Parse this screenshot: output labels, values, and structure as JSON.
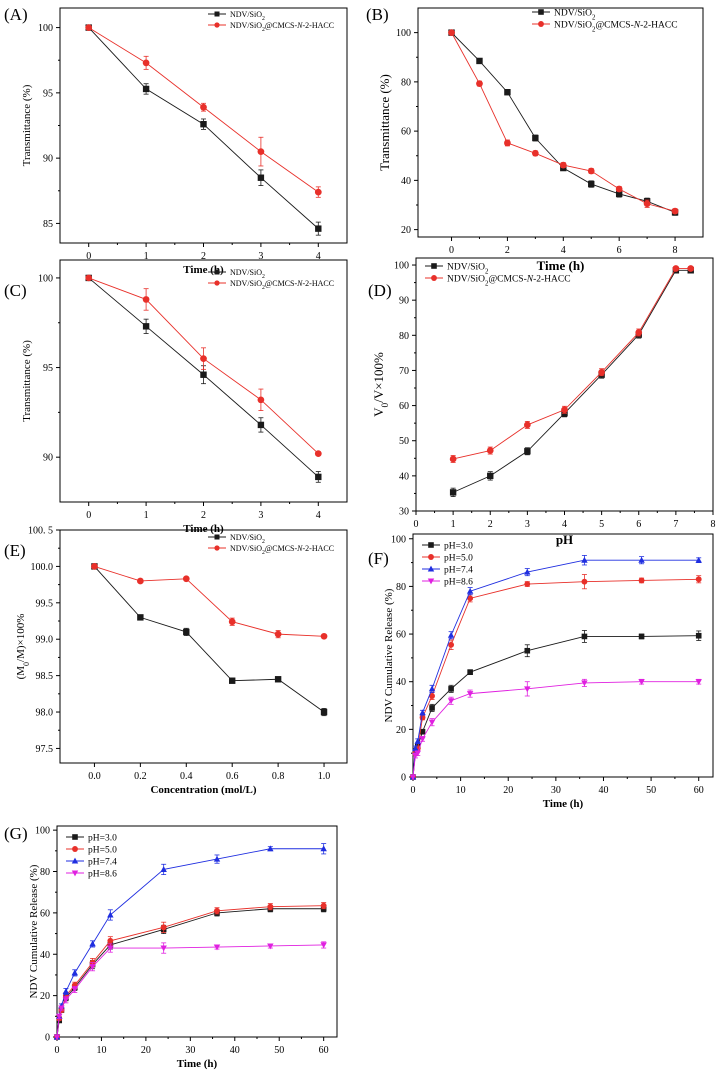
{
  "colors": {
    "black": "#1a1a1a",
    "red": "#e8302a",
    "blue": "#1f2ee0",
    "magenta": "#e020e0",
    "axis": "#000000"
  },
  "chart_data": [
    {
      "panel": "(A)",
      "type": "line",
      "xlabel": "Time (h)",
      "ylabel": "Transmittance (%)",
      "xlim": [
        -0.5,
        4.5
      ],
      "ylim": [
        83.5,
        101.5
      ],
      "xticks": [
        0,
        1,
        2,
        3,
        4
      ],
      "xtick_labels": [
        "0",
        "1",
        "2",
        "3",
        "4"
      ],
      "yticks": [
        85,
        90,
        95,
        100
      ],
      "ytick_labels": [
        "85",
        "90",
        "95",
        "100"
      ],
      "legend_position": "top-right",
      "legend_size": "small",
      "series": [
        {
          "name": "NDV/SiO₂",
          "legend_parts": [
            [
              "NDV/SiO",
              ""
            ],
            [
              "2",
              "sub"
            ]
          ],
          "color": "#1a1a1a",
          "marker": "square",
          "x": [
            0,
            1,
            2,
            3,
            4
          ],
          "y": [
            100,
            95.3,
            92.6,
            88.5,
            84.6
          ],
          "err": [
            0.1,
            0.4,
            0.4,
            0.6,
            0.5
          ]
        },
        {
          "name": "NDV/SiO₂@CMCS-N-2-HACC",
          "legend_parts": [
            [
              "NDV/SiO",
              ""
            ],
            [
              "2",
              "sub"
            ],
            [
              "@CMCS-",
              ""
            ],
            [
              "N",
              "i"
            ],
            [
              "-2-HACC",
              ""
            ]
          ],
          "color": "#e8302a",
          "marker": "circle",
          "x": [
            0,
            1,
            2,
            3,
            4
          ],
          "y": [
            100,
            97.3,
            93.9,
            90.5,
            87.4
          ],
          "err": [
            0.1,
            0.5,
            0.3,
            1.1,
            0.4
          ]
        }
      ]
    },
    {
      "panel": "(B)",
      "type": "line",
      "xlabel": "Time (h)",
      "ylabel": "Transmittance (%)",
      "xlim": [
        -1.2,
        9
      ],
      "ylim": [
        17,
        110
      ],
      "xticks": [
        0,
        2,
        4,
        6,
        8
      ],
      "xtick_labels": [
        "0",
        "2",
        "4",
        "6",
        "8"
      ],
      "yticks": [
        20,
        40,
        60,
        80,
        100
      ],
      "ytick_labels": [
        "20",
        "40",
        "60",
        "80",
        "100"
      ],
      "legend_position": "top-right",
      "legend_size": "normal",
      "series": [
        {
          "name": "NDV/SiO₂",
          "legend_parts": [
            [
              "NDV/SiO",
              ""
            ],
            [
              "2",
              "sub"
            ]
          ],
          "color": "#1a1a1a",
          "marker": "square",
          "x": [
            0,
            1,
            2,
            3,
            4,
            5,
            6,
            7,
            8
          ],
          "y": [
            100,
            88.5,
            75.8,
            57.2,
            45,
            38.5,
            34.5,
            31.5,
            27
          ],
          "err": [
            0.3,
            1,
            1,
            1.2,
            1,
            1.3,
            1.3,
            1.3,
            1.2
          ]
        },
        {
          "name": "NDV/SiO₂@CMCS-N-2-HACC",
          "legend_parts": [
            [
              "NDV/SiO",
              ""
            ],
            [
              "2",
              "sub"
            ],
            [
              "@CMCS-",
              ""
            ],
            [
              "N",
              "i"
            ],
            [
              "-2-HACC",
              ""
            ]
          ],
          "color": "#e8302a",
          "marker": "circle",
          "x": [
            0,
            1,
            2,
            3,
            4,
            5,
            6,
            7,
            8
          ],
          "y": [
            100,
            79.3,
            55.2,
            51,
            46.2,
            43.8,
            36.5,
            30.5,
            27.5
          ],
          "err": [
            0.3,
            1,
            1.2,
            1,
            1,
            1,
            1,
            1.5,
            1
          ]
        }
      ]
    },
    {
      "panel": "(C)",
      "type": "line",
      "xlabel": "Time (h)",
      "ylabel": "Transmittance (%)",
      "xlim": [
        -0.5,
        4.5
      ],
      "ylim": [
        87.5,
        101
      ],
      "xticks": [
        0,
        1,
        2,
        3,
        4
      ],
      "xtick_labels": [
        "0",
        "1",
        "2",
        "3",
        "4"
      ],
      "yticks": [
        90,
        95,
        100
      ],
      "ytick_labels": [
        "90",
        "95",
        "100"
      ],
      "legend_position": "top-right",
      "legend_size": "small",
      "series": [
        {
          "name": "NDV/SiO₂",
          "legend_parts": [
            [
              "NDV/SiO",
              ""
            ],
            [
              "2",
              "sub"
            ]
          ],
          "color": "#1a1a1a",
          "marker": "square",
          "x": [
            0,
            1,
            2,
            3,
            4
          ],
          "y": [
            100,
            97.3,
            94.6,
            91.8,
            88.9
          ],
          "err": [
            0.1,
            0.4,
            0.5,
            0.4,
            0.3
          ]
        },
        {
          "name": "NDV/SiO₂@CMCS-N-2-HACC",
          "legend_parts": [
            [
              "NDV/SiO",
              ""
            ],
            [
              "2",
              "sub"
            ],
            [
              "@CMCS-",
              ""
            ],
            [
              "N",
              "i"
            ],
            [
              "-2-HACC",
              ""
            ]
          ],
          "color": "#e8302a",
          "marker": "circle",
          "x": [
            0,
            1,
            2,
            3,
            4
          ],
          "y": [
            100,
            98.8,
            95.5,
            93.2,
            90.2
          ],
          "err": [
            0.1,
            0.6,
            0.6,
            0.6,
            0.1
          ]
        }
      ]
    },
    {
      "panel": "(D)",
      "type": "line",
      "xlabel": "pH",
      "ylabel": "V0/V×100%",
      "ylabel_parts": [
        [
          "V",
          ""
        ],
        [
          "0",
          "sub"
        ],
        [
          "/V×100%",
          ""
        ]
      ],
      "xlim": [
        0,
        8
      ],
      "ylim": [
        30,
        102
      ],
      "xticks": [
        0,
        1,
        2,
        3,
        4,
        5,
        6,
        7,
        8
      ],
      "xtick_labels": [
        "0",
        "1",
        "2",
        "3",
        "4",
        "5",
        "6",
        "7",
        "8"
      ],
      "yticks": [
        30,
        40,
        50,
        60,
        70,
        80,
        90,
        100
      ],
      "ytick_labels": [
        "30",
        "40",
        "50",
        "60",
        "70",
        "80",
        "90",
        "100"
      ],
      "legend_position": "top-left",
      "legend_size": "normal",
      "series": [
        {
          "name": "NDV/SiO₂",
          "legend_parts": [
            [
              "NDV/SiO",
              ""
            ],
            [
              "2",
              "sub"
            ]
          ],
          "color": "#1a1a1a",
          "marker": "square",
          "x": [
            1,
            2,
            3,
            4,
            5,
            6,
            7,
            7.4
          ],
          "y": [
            35.3,
            40,
            47,
            57.8,
            68.8,
            80.2,
            98.5,
            98.5
          ],
          "err": [
            1.2,
            1.2,
            1,
            1,
            1,
            1,
            0.5,
            0.5
          ]
        },
        {
          "name": "NDV/SiO₂@CMCS-N-2-HACC",
          "legend_parts": [
            [
              "NDV/SiO",
              ""
            ],
            [
              "2",
              "sub"
            ],
            [
              "@CMCS-",
              ""
            ],
            [
              "N",
              "i"
            ],
            [
              "-2-HACC",
              ""
            ]
          ],
          "color": "#e8302a",
          "marker": "circle",
          "x": [
            1,
            2,
            3,
            4,
            5,
            6,
            7,
            7.4
          ],
          "y": [
            44.8,
            47.2,
            54.5,
            58.8,
            69.5,
            80.8,
            99,
            99
          ],
          "err": [
            1,
            1,
            1,
            1,
            1,
            1,
            0.5,
            0.5
          ]
        }
      ]
    },
    {
      "panel": "(E)",
      "type": "line",
      "xlabel": "Concentration (mol/L)",
      "ylabel": "(M0/M)×100%",
      "ylabel_parts": [
        [
          "(M",
          ""
        ],
        [
          "0",
          "sub"
        ],
        [
          "/M)×100%",
          ""
        ]
      ],
      "xlim": [
        -0.15,
        1.1
      ],
      "ylim": [
        97.3,
        100.5
      ],
      "xticks": [
        0,
        0.2,
        0.4,
        0.6,
        0.8,
        1.0
      ],
      "xtick_labels": [
        "0.0",
        "0.2",
        "0.4",
        "0.6",
        "0.8",
        "1.0"
      ],
      "yticks": [
        97.5,
        98.0,
        98.5,
        99.0,
        99.5,
        100.0,
        100.5
      ],
      "ytick_labels": [
        "97.5",
        "98.0",
        "98.5",
        "99.0",
        "99.5",
        "100.0",
        "100. 5"
      ],
      "legend_position": "top-right",
      "legend_size": "small",
      "series": [
        {
          "name": "NDV/SiO₂",
          "legend_parts": [
            [
              "NDV/SiO",
              ""
            ],
            [
              "2",
              "sub"
            ]
          ],
          "color": "#1a1a1a",
          "marker": "square",
          "x": [
            0,
            0.2,
            0.4,
            0.6,
            0.8,
            1.0
          ],
          "y": [
            100,
            99.3,
            99.1,
            98.43,
            98.45,
            98
          ],
          "err": [
            0.01,
            0.02,
            0.05,
            0.02,
            0.02,
            0.05
          ]
        },
        {
          "name": "NDV/SiO₂@CMCS-N-2-HACC",
          "legend_parts": [
            [
              "NDV/SiO",
              ""
            ],
            [
              "2",
              "sub"
            ],
            [
              "@CMCS-",
              ""
            ],
            [
              "N",
              "i"
            ],
            [
              "-2-HACC",
              ""
            ]
          ],
          "color": "#e8302a",
          "marker": "circle",
          "x": [
            0,
            0.2,
            0.4,
            0.6,
            0.8,
            1.0
          ],
          "y": [
            100,
            99.8,
            99.83,
            99.24,
            99.07,
            99.04
          ],
          "err": [
            0.01,
            0.02,
            0.02,
            0.05,
            0.05,
            0.02
          ]
        }
      ]
    },
    {
      "panel": "(F)",
      "type": "line",
      "xlabel": "Time (h)",
      "ylabel": "NDV Cumulative Release (%)",
      "xlim": [
        0,
        63
      ],
      "ylim": [
        0,
        102
      ],
      "xticks": [
        0,
        10,
        20,
        30,
        40,
        50,
        60
      ],
      "xtick_labels": [
        "0",
        "10",
        "20",
        "30",
        "40",
        "50",
        "60"
      ],
      "yticks": [
        0,
        20,
        40,
        60,
        80,
        100
      ],
      "ytick_labels": [
        "0",
        "20",
        "40",
        "60",
        "80",
        "100"
      ],
      "legend_position": "top-left",
      "legend_size": "normal",
      "series": [
        {
          "name": "pH=3.0",
          "color": "#1a1a1a",
          "marker": "square",
          "x": [
            0,
            0.5,
            1,
            2,
            4,
            8,
            12,
            24,
            36,
            48,
            60
          ],
          "y": [
            0,
            10,
            13,
            19,
            29,
            37,
            44,
            53,
            59,
            59,
            59.3
          ],
          "err": [
            0,
            1,
            1,
            1,
            1.5,
            1.5,
            1,
            2.5,
            2.5,
            1,
            2
          ]
        },
        {
          "name": "pH=5.0",
          "color": "#e8302a",
          "marker": "circle",
          "x": [
            0,
            0.5,
            1,
            2,
            4,
            8,
            12,
            24,
            36,
            48,
            60
          ],
          "y": [
            0,
            10,
            12,
            25,
            34,
            55.5,
            75,
            81,
            82,
            82.5,
            83
          ],
          "err": [
            0,
            1,
            1,
            1,
            1.5,
            2,
            1.5,
            1,
            3,
            1,
            1.5
          ]
        },
        {
          "name": "pH=7.4",
          "color": "#1f2ee0",
          "marker": "triangle-up",
          "x": [
            0,
            0.5,
            1,
            2,
            4,
            8,
            12,
            24,
            36,
            48,
            60
          ],
          "y": [
            0,
            12,
            15,
            27,
            37,
            59.5,
            78,
            86,
            91,
            91,
            91
          ],
          "err": [
            0,
            1,
            1,
            1,
            1.5,
            1.5,
            1.5,
            1.5,
            2,
            1.5,
            1
          ]
        },
        {
          "name": "pH=8.6",
          "color": "#e020e0",
          "marker": "triangle-down",
          "x": [
            0,
            0.5,
            1,
            2,
            4,
            8,
            12,
            24,
            36,
            48,
            60
          ],
          "y": [
            0,
            9,
            10,
            16,
            23,
            32,
            35,
            37,
            39.5,
            40,
            40
          ],
          "err": [
            0,
            1,
            1,
            1,
            1.5,
            1.5,
            1.5,
            3,
            1.5,
            1,
            1
          ]
        }
      ]
    },
    {
      "panel": "(G)",
      "type": "line",
      "xlabel": "Time (h)",
      "ylabel": "NDV Cumulative Release (%)",
      "xlim": [
        0,
        63
      ],
      "ylim": [
        0,
        102
      ],
      "xticks": [
        0,
        10,
        20,
        30,
        40,
        50,
        60
      ],
      "xtick_labels": [
        "0",
        "10",
        "20",
        "30",
        "40",
        "50",
        "60"
      ],
      "yticks": [
        0,
        20,
        40,
        60,
        80,
        100
      ],
      "ytick_labels": [
        "0",
        "20",
        "40",
        "60",
        "80",
        "100"
      ],
      "legend_position": "top-left",
      "legend_size": "normal",
      "series": [
        {
          "name": "pH=3.0",
          "color": "#1a1a1a",
          "marker": "square",
          "x": [
            0,
            0.5,
            1,
            2,
            4,
            8,
            12,
            24,
            36,
            48,
            60
          ],
          "y": [
            0,
            8,
            13,
            19,
            24,
            35,
            44.5,
            52,
            60,
            62,
            62
          ],
          "err": [
            0,
            1,
            1,
            1.5,
            1.5,
            2,
            2,
            2,
            1.5,
            1.5,
            1.5
          ]
        },
        {
          "name": "pH=5.0",
          "color": "#e8302a",
          "marker": "circle",
          "x": [
            0,
            0.5,
            1,
            2,
            4,
            8,
            12,
            24,
            36,
            48,
            60
          ],
          "y": [
            0,
            9,
            13,
            20,
            25,
            36,
            46.5,
            53,
            61,
            63,
            63.5
          ],
          "err": [
            0,
            1,
            1,
            1.5,
            1.5,
            2,
            2,
            2.5,
            1.5,
            1.5,
            1.5
          ]
        },
        {
          "name": "pH=7.4",
          "color": "#1f2ee0",
          "marker": "triangle-up",
          "x": [
            0,
            0.5,
            1,
            2,
            4,
            8,
            12,
            24,
            36,
            48,
            60
          ],
          "y": [
            0,
            10,
            15,
            22,
            31,
            45,
            59,
            81,
            86,
            91,
            91
          ],
          "err": [
            0,
            1,
            1,
            1.5,
            1.5,
            1.5,
            2.5,
            2.5,
            2,
            1,
            2.5
          ]
        },
        {
          "name": "pH=8.6",
          "color": "#e020e0",
          "marker": "triangle-down",
          "x": [
            0,
            0.5,
            1,
            2,
            4,
            8,
            12,
            24,
            36,
            48,
            60
          ],
          "y": [
            0,
            10,
            14,
            18,
            23,
            34,
            43,
            43,
            43.5,
            44,
            44.5
          ],
          "err": [
            0,
            1,
            1,
            1.5,
            1.5,
            2,
            2,
            2.5,
            1,
            1,
            1.5
          ]
        }
      ]
    }
  ]
}
